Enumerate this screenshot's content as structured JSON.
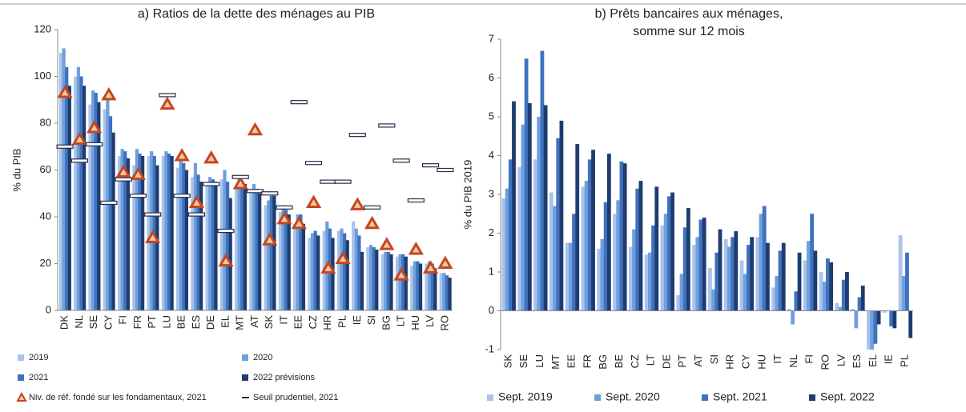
{
  "chart_data": [
    {
      "type": "bar",
      "title": "a) Ratios de la dette des ménages au PIB",
      "ylabel": "% du PIB",
      "categories": [
        "DK",
        "NL",
        "SE",
        "CY",
        "FI",
        "FR",
        "PT",
        "LU",
        "BE",
        "ES",
        "DE",
        "EL",
        "MT",
        "AT",
        "SK",
        "IT",
        "EE",
        "CZ",
        "HR",
        "PL",
        "IE",
        "SI",
        "BG",
        "LT",
        "HU",
        "LV",
        "RO"
      ],
      "ylim": [
        0,
        120
      ],
      "yticks": [
        0,
        20,
        40,
        60,
        80,
        100,
        120
      ],
      "series": [
        {
          "name": "2019",
          "color": "#a9c4eb",
          "values": [
            110,
            100,
            88,
            86,
            66,
            62,
            66,
            66,
            61,
            57,
            54,
            56,
            53,
            50,
            45,
            42,
            37,
            31,
            34,
            34,
            38,
            27,
            24,
            23,
            19,
            20,
            16
          ]
        },
        {
          "name": "2020",
          "color": "#6f9fdc",
          "values": [
            112,
            104,
            94,
            90,
            69,
            69,
            68,
            68,
            65,
            63,
            57,
            60,
            57,
            54,
            47,
            45,
            41,
            33,
            38,
            35,
            35,
            28,
            25,
            24,
            21,
            21,
            16
          ]
        },
        {
          "name": "2021",
          "color": "#3f72be",
          "values": [
            104,
            100,
            93,
            83,
            68,
            67,
            66,
            67,
            63,
            58,
            56,
            55,
            55,
            52,
            49,
            43,
            41,
            34,
            35,
            33,
            32,
            27,
            25,
            24,
            21,
            20,
            15
          ]
        },
        {
          "name": "2022 prévisions",
          "color": "#1f3c6e",
          "values": [
            96,
            96,
            89,
            76,
            65,
            66,
            62,
            66,
            60,
            55,
            55,
            48,
            54,
            50,
            49,
            41,
            37,
            32,
            31,
            30,
            25,
            26,
            24,
            23,
            20,
            18,
            14
          ]
        },
        {
          "name": "Niv. de réf. fondé sur les fondamentaux, 2021",
          "marker": "triangle",
          "color": "#c4471f",
          "values": [
            93,
            73,
            78,
            92,
            59,
            58,
            31,
            88,
            66,
            46,
            65,
            21,
            54,
            77,
            30,
            39,
            37,
            46,
            18,
            22,
            45,
            37,
            28,
            15,
            26,
            18,
            20
          ]
        },
        {
          "name": "Seuil prudentiel, 2021",
          "marker": "dash",
          "color": "#2b2b4a",
          "values": [
            70,
            64,
            71,
            46,
            56,
            49,
            41,
            92,
            49,
            41,
            54,
            34,
            57,
            51,
            50,
            44,
            89,
            63,
            55,
            55,
            75,
            44,
            79,
            64,
            47,
            62,
            60
          ]
        }
      ]
    },
    {
      "type": "bar",
      "title": [
        "b) Prêts bancaires aux ménages,",
        "somme sur 12 mois"
      ],
      "ylabel": "% du PIB 2019",
      "categories": [
        "SK",
        "SE",
        "LU",
        "MT",
        "EE",
        "FR",
        "BG",
        "BE",
        "CZ",
        "LT",
        "DE",
        "PT",
        "AT",
        "SI",
        "HR",
        "CY",
        "HU",
        "IT",
        "NL",
        "FI",
        "RO",
        "LV",
        "ES",
        "EL",
        "IE",
        "PL"
      ],
      "ylim": [
        -1,
        7
      ],
      "yticks": [
        -1,
        0,
        1,
        2,
        3,
        4,
        5,
        6,
        7
      ],
      "series": [
        {
          "name": "Sept. 2019",
          "color": "#a9c4eb",
          "values": [
            2.9,
            3.7,
            3.9,
            3.05,
            1.75,
            3.2,
            1.6,
            2.5,
            1.65,
            1.45,
            2.2,
            0.4,
            1.7,
            1.1,
            1.85,
            1.3,
            1.9,
            0.6,
            0.05,
            1.3,
            1.0,
            0.2,
            0.05,
            -1.0,
            -0.05,
            1.95
          ]
        },
        {
          "name": "Sept. 2020",
          "color": "#6f9fdc",
          "values": [
            3.15,
            4.8,
            5.0,
            2.7,
            1.75,
            3.35,
            1.85,
            2.85,
            2.1,
            1.5,
            2.5,
            0.95,
            1.9,
            0.55,
            1.65,
            0.95,
            2.5,
            0.9,
            -0.35,
            1.8,
            0.75,
            0.1,
            -0.45,
            -1.0,
            0.0,
            0.9
          ]
        },
        {
          "name": "Sept. 2021",
          "color": "#3f72be",
          "values": [
            3.9,
            6.5,
            6.7,
            4.45,
            2.5,
            3.9,
            2.8,
            3.85,
            3.15,
            2.2,
            2.95,
            2.15,
            2.35,
            1.5,
            1.9,
            1.7,
            2.7,
            1.55,
            0.5,
            2.5,
            1.35,
            0.8,
            0.35,
            -0.85,
            -0.4,
            1.5
          ]
        },
        {
          "name": "Sept. 2022",
          "color": "#1f3c6e",
          "values": [
            5.4,
            5.35,
            5.3,
            4.9,
            4.3,
            4.15,
            4.05,
            3.8,
            3.35,
            3.2,
            3.05,
            2.65,
            2.4,
            2.1,
            2.05,
            1.9,
            1.75,
            1.75,
            1.5,
            1.55,
            1.25,
            1.0,
            0.65,
            -0.35,
            -0.45,
            -0.7
          ]
        }
      ]
    }
  ]
}
